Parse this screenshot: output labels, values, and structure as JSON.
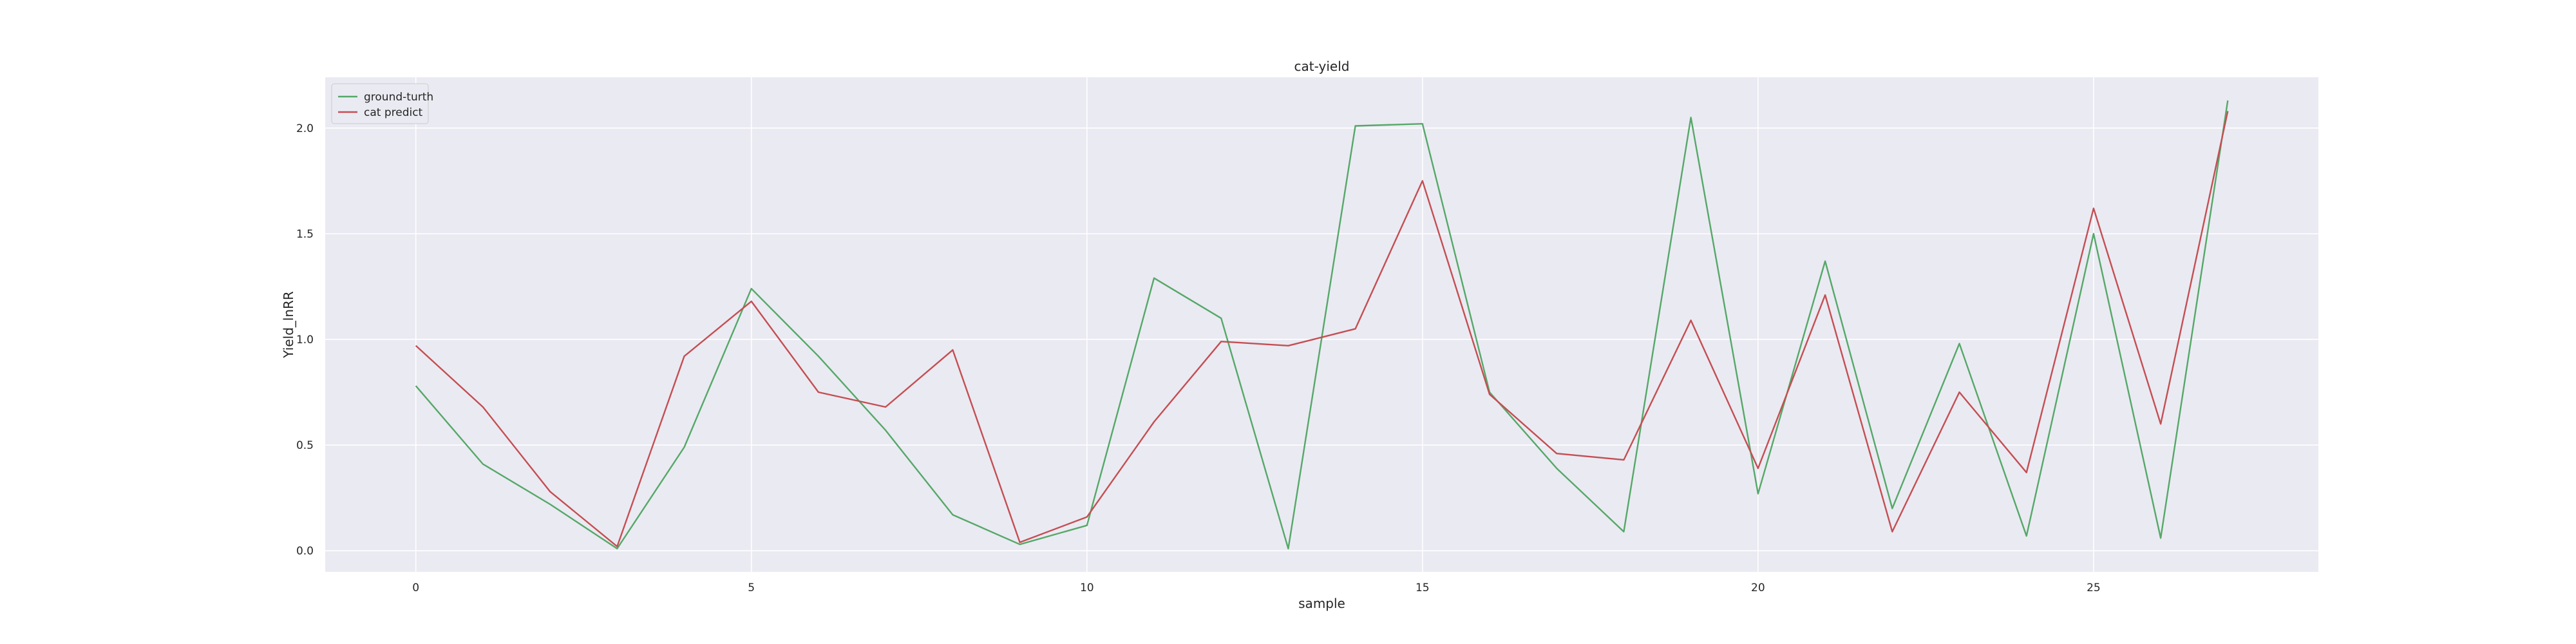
{
  "chart_data": {
    "type": "line",
    "title": "cat-yield",
    "xlabel": "sample",
    "ylabel": "Yield_lnRR",
    "xlim": [
      -1.35,
      28.35
    ],
    "ylim": [
      -0.1,
      2.24
    ],
    "xticks": [
      0,
      5,
      10,
      15,
      20,
      25
    ],
    "yticks": [
      0.0,
      0.5,
      1.0,
      1.5,
      2.0
    ],
    "ytick_labels": [
      "0.0",
      "0.5",
      "1.0",
      "1.5",
      "2.0"
    ],
    "grid": true,
    "legend_position": "top-left",
    "background": "#eaeaf2",
    "x": [
      0,
      1,
      2,
      3,
      4,
      5,
      6,
      7,
      8,
      9,
      10,
      11,
      12,
      13,
      14,
      15,
      16,
      17,
      18,
      19,
      20,
      21,
      22,
      23,
      24,
      25,
      26,
      27
    ],
    "series": [
      {
        "name": "ground-turth",
        "color": "#55a868",
        "values": [
          0.78,
          0.41,
          0.22,
          0.01,
          0.49,
          1.24,
          0.92,
          0.57,
          0.17,
          0.03,
          0.12,
          1.29,
          1.1,
          0.01,
          2.01,
          2.02,
          0.75,
          0.39,
          0.09,
          2.05,
          0.27,
          1.37,
          0.2,
          0.98,
          0.07,
          1.5,
          0.06,
          2.13
        ]
      },
      {
        "name": "cat predict",
        "color": "#c44e52",
        "values": [
          0.97,
          0.68,
          0.28,
          0.02,
          0.92,
          1.18,
          0.75,
          0.68,
          0.95,
          0.04,
          0.16,
          0.61,
          0.99,
          0.97,
          1.05,
          1.75,
          0.74,
          0.46,
          0.43,
          1.09,
          0.39,
          1.21,
          0.09,
          0.75,
          0.37,
          1.62,
          0.6,
          2.08
        ]
      }
    ]
  }
}
